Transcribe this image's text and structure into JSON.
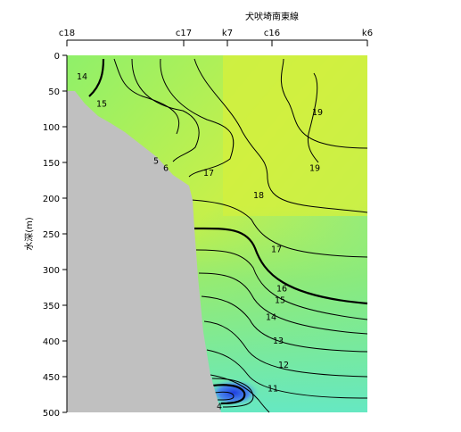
{
  "chart_data": {
    "type": "contour",
    "title": "犬吠埼南東線",
    "ylabel": "水深(m)",
    "ylim": [
      0,
      500
    ],
    "y_ticks": [
      0,
      50,
      100,
      150,
      200,
      250,
      300,
      350,
      400,
      450,
      500
    ],
    "stations": [
      "c18",
      "c17",
      "k7",
      "c16",
      "k6"
    ],
    "contour_labels": [
      {
        "value": "14",
        "depth": 30
      },
      {
        "value": "15",
        "depth": 68
      },
      {
        "value": "19",
        "depth": 80
      },
      {
        "value": "5",
        "depth": 148
      },
      {
        "value": "6",
        "depth": 158
      },
      {
        "value": "17",
        "depth": 165
      },
      {
        "value": "19",
        "depth": 158
      },
      {
        "value": "18",
        "depth": 196
      },
      {
        "value": "17",
        "depth": 272
      },
      {
        "value": "16",
        "depth": 327
      },
      {
        "value": "15",
        "depth": 343
      },
      {
        "value": "14",
        "depth": 367
      },
      {
        "value": "13",
        "depth": 400
      },
      {
        "value": "12",
        "depth": 434
      },
      {
        "value": "11",
        "depth": 467
      },
      {
        "value": "4",
        "depth": 492
      }
    ],
    "colors": {
      "warm": "#d8f03c",
      "mid": "#96ec6a",
      "cool": "#5ee8b2",
      "cold_core": "#2e5ce6",
      "bottom": "#c0c0c0"
    }
  }
}
